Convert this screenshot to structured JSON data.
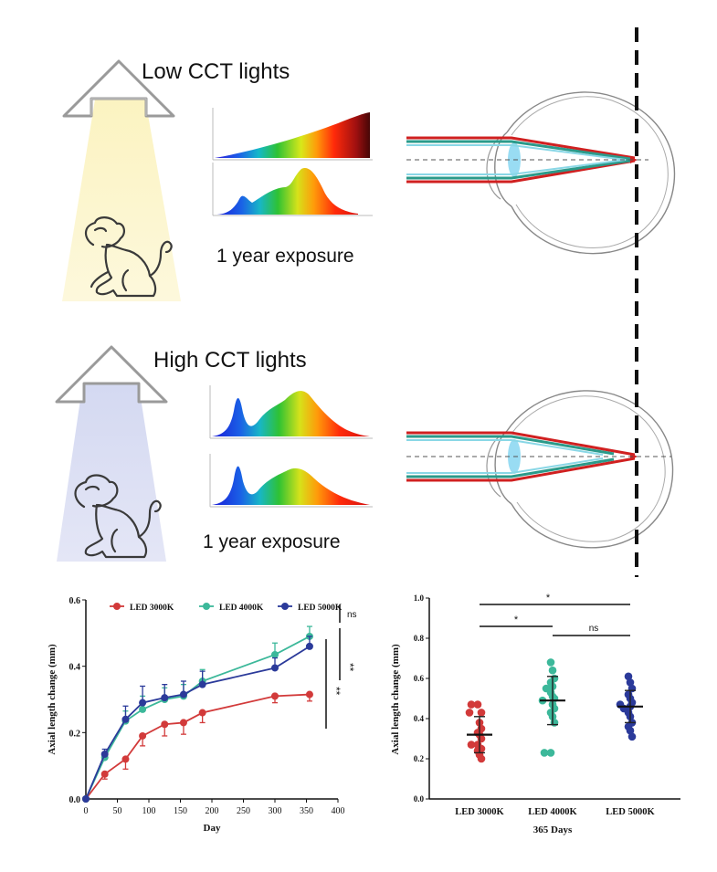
{
  "panels": {
    "low": {
      "title": "Low CCT lights",
      "caption": "1 year exposure"
    },
    "high": {
      "title": "High CCT lights",
      "caption": "1 year exposure"
    }
  },
  "colors": {
    "low_light": "#fbf5c8",
    "high_light": "#dcdff3",
    "red": "#d23a3a",
    "teal": "#3cb89a",
    "navy": "#2b3a9a"
  },
  "chart_data": [
    {
      "type": "line",
      "title": "",
      "xlabel": "Day",
      "ylabel": "Axial length change (mm)",
      "xlim": [
        0,
        400
      ],
      "ylim": [
        0,
        0.6
      ],
      "x_ticks": [
        "0",
        "50",
        "100",
        "150",
        "200",
        "250",
        "300",
        "350",
        "400"
      ],
      "y_ticks": [
        "0.0",
        "0.2",
        "0.4",
        "0.6"
      ],
      "legend": [
        "LED 3000K",
        "LED 4000K",
        "LED 5000K"
      ],
      "series": [
        {
          "name": "LED 3000K",
          "color": "#d23a3a",
          "x": [
            0,
            30,
            63,
            90,
            125,
            155,
            185,
            300,
            355
          ],
          "values": [
            0,
            0.075,
            0.12,
            0.19,
            0.225,
            0.23,
            0.26,
            0.31,
            0.315
          ],
          "err": [
            0,
            0.015,
            0.03,
            0.03,
            0.035,
            0.035,
            0.03,
            0.02,
            0.02
          ]
        },
        {
          "name": "LED 4000K",
          "color": "#3cb89a",
          "x": [
            0,
            30,
            63,
            90,
            125,
            155,
            185,
            300,
            355
          ],
          "values": [
            0,
            0.125,
            0.235,
            0.27,
            0.3,
            0.31,
            0.355,
            0.435,
            0.49
          ],
          "err": [
            0,
            0.015,
            0.03,
            0.04,
            0.035,
            0.035,
            0.035,
            0.035,
            0.03
          ]
        },
        {
          "name": "LED 5000K",
          "color": "#2b3a9a",
          "x": [
            0,
            30,
            63,
            90,
            125,
            155,
            185,
            300,
            355
          ],
          "values": [
            0,
            0.135,
            0.24,
            0.29,
            0.305,
            0.315,
            0.345,
            0.395,
            0.46
          ],
          "err": [
            0,
            0.015,
            0.04,
            0.05,
            0.04,
            0.04,
            0.04,
            0.03,
            0.03
          ]
        }
      ],
      "significance": [
        {
          "label": "ns"
        },
        {
          "label": "**"
        },
        {
          "label": "**"
        }
      ]
    },
    {
      "type": "scatter",
      "title": "",
      "xlabel": "365 Days",
      "ylabel": "Axial length change (mm)",
      "ylim": [
        0,
        1.0
      ],
      "y_ticks": [
        "0.0",
        "0.2",
        "0.4",
        "0.6",
        "0.8",
        "1.0"
      ],
      "categories": [
        "LED 3000K",
        "LED 4000K",
        "LED 5000K"
      ],
      "series": [
        {
          "name": "LED 3000K",
          "color": "#d23a3a",
          "mean": 0.32,
          "sd": 0.09,
          "values": [
            0.47,
            0.47,
            0.43,
            0.43,
            0.38,
            0.35,
            0.33,
            0.32,
            0.3,
            0.27,
            0.27,
            0.25,
            0.24,
            0.22,
            0.2
          ]
        },
        {
          "name": "LED 4000K",
          "color": "#3cb89a",
          "mean": 0.49,
          "sd": 0.12,
          "values": [
            0.68,
            0.64,
            0.6,
            0.58,
            0.56,
            0.55,
            0.53,
            0.51,
            0.5,
            0.49,
            0.47,
            0.45,
            0.43,
            0.41,
            0.38,
            0.23,
            0.23
          ]
        },
        {
          "name": "LED 5000K",
          "color": "#2b3a9a",
          "mean": 0.46,
          "sd": 0.08,
          "values": [
            0.61,
            0.58,
            0.55,
            0.52,
            0.5,
            0.48,
            0.47,
            0.46,
            0.45,
            0.43,
            0.41,
            0.38,
            0.36,
            0.34,
            0.31
          ]
        }
      ],
      "significance": [
        {
          "label": "*"
        },
        {
          "label": "*"
        },
        {
          "label": "ns"
        }
      ]
    }
  ]
}
